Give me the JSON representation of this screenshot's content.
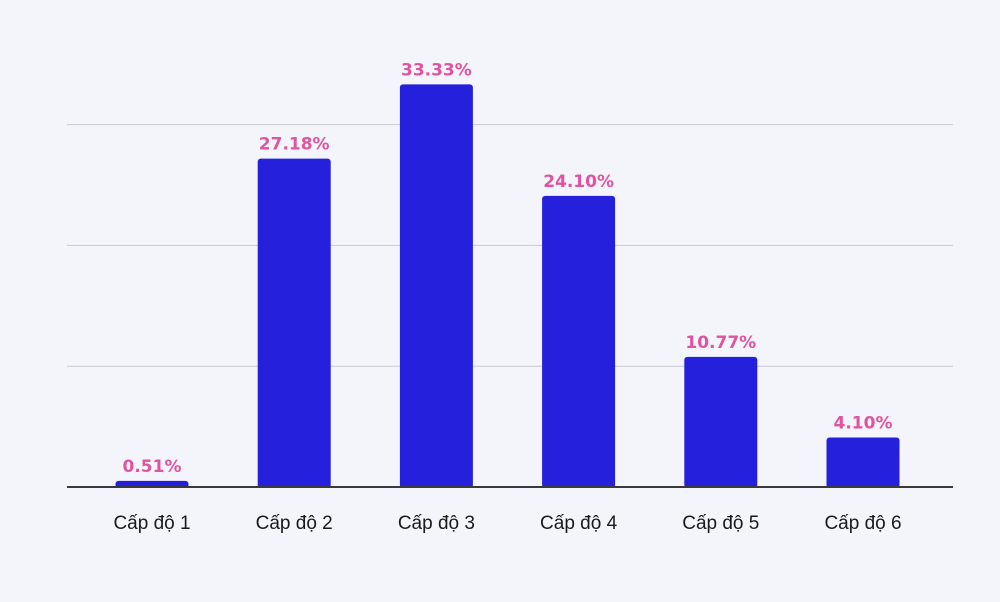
{
  "chart_data": {
    "type": "bar",
    "categories": [
      "Cấp độ 1",
      "Cấp độ 2",
      "Cấp độ 3",
      "Cấp độ 4",
      "Cấp độ 5",
      "Cấp độ 6"
    ],
    "values": [
      0.51,
      27.18,
      33.33,
      24.1,
      10.77,
      4.1
    ],
    "value_labels": [
      "0.51%",
      "27.18%",
      "33.33%",
      "24.10%",
      "10.77%",
      "4.10%"
    ],
    "title": "",
    "xlabel": "",
    "ylabel": "",
    "ylim": [
      0,
      30
    ],
    "grid": true,
    "colors": {
      "bar": "#2420dc",
      "value_label": "#e0539f",
      "category_label": "#1a1a1a",
      "grid": "#c9c9d3",
      "axis": "#3a3a3a",
      "background": "#f4f5fb"
    }
  }
}
